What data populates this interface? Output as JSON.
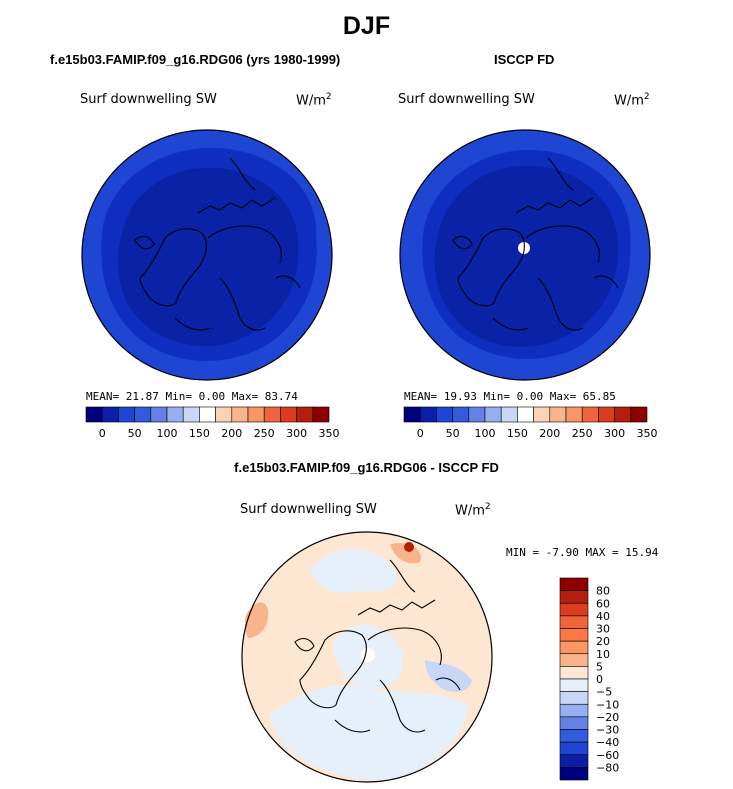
{
  "title": "DJF",
  "panels": [
    {
      "title": "f.e15b03.FAMIP.f09_g16.RDG06 (yrs 1980-1999)",
      "variable": "Surf downwelling SW",
      "units_base": "W/m",
      "units_exp": "2",
      "stats": "MEAN=  21.87  Min=   0.00  Max=  83.74"
    },
    {
      "title": "ISCCP FD",
      "variable": "Surf downwelling SW",
      "units_base": "W/m",
      "units_exp": "2",
      "stats": "MEAN=  19.93  Min=   0.00  Max=  65.85"
    }
  ],
  "diff_panel": {
    "title": "f.e15b03.FAMIP.f09_g16.RDG06 - ISCCP FD",
    "variable": "Surf downwelling SW",
    "units_base": "W/m",
    "units_exp": "2",
    "stats": "MIN =  -7.90 MAX =  15.94"
  },
  "chart_data": [
    {
      "type": "heatmap",
      "projection": "north-polar-stereographic",
      "title": "f.e15b03.FAMIP.f09_g16.RDG06 (yrs 1980-1999)",
      "mean": 21.87,
      "min": 0.0,
      "max": 83.74,
      "colorbar": {
        "tick_labels": [
          "0",
          "50",
          "100",
          "150",
          "200",
          "250",
          "300",
          "350"
        ],
        "colors": [
          "#00007f",
          "#0a1ea8",
          "#1e46d2",
          "#325adc",
          "#6482e6",
          "#96aff0",
          "#c8d7f5",
          "#ffffff",
          "#fad2b4",
          "#fab48c",
          "#fa9664",
          "#f0643c",
          "#dc3c1e",
          "#b41e0a",
          "#8c0000"
        ]
      }
    },
    {
      "type": "heatmap",
      "projection": "north-polar-stereographic",
      "title": "ISCCP FD",
      "mean": 19.93,
      "min": 0.0,
      "max": 65.85,
      "colorbar": {
        "tick_labels": [
          "0",
          "50",
          "100",
          "150",
          "200",
          "250",
          "300",
          "350"
        ],
        "colors": [
          "#00007f",
          "#0a1ea8",
          "#1e46d2",
          "#325adc",
          "#6482e6",
          "#96aff0",
          "#c8d7f5",
          "#ffffff",
          "#fad2b4",
          "#fab48c",
          "#fa9664",
          "#f0643c",
          "#dc3c1e",
          "#b41e0a",
          "#8c0000"
        ]
      }
    },
    {
      "type": "heatmap",
      "projection": "north-polar-stereographic",
      "title": "f.e15b03.FAMIP.f09_g16.RDG06 - ISCCP FD",
      "min": -7.9,
      "max": 15.94,
      "colorbar": {
        "tick_labels": [
          "80",
          "60",
          "40",
          "30",
          "20",
          "10",
          "5",
          "0",
          "−5",
          "−10",
          "−20",
          "−30",
          "−40",
          "−60",
          "−80"
        ],
        "colors": [
          "#8c0000",
          "#b41e0a",
          "#dc3c1e",
          "#f0643c",
          "#fa7846",
          "#fa9664",
          "#fab48c",
          "#fde6d2",
          "#e6f0fa",
          "#c8d7f5",
          "#96aff0",
          "#6482e6",
          "#325adc",
          "#1e46d2",
          "#0a1ea8",
          "#00007f"
        ]
      }
    }
  ]
}
